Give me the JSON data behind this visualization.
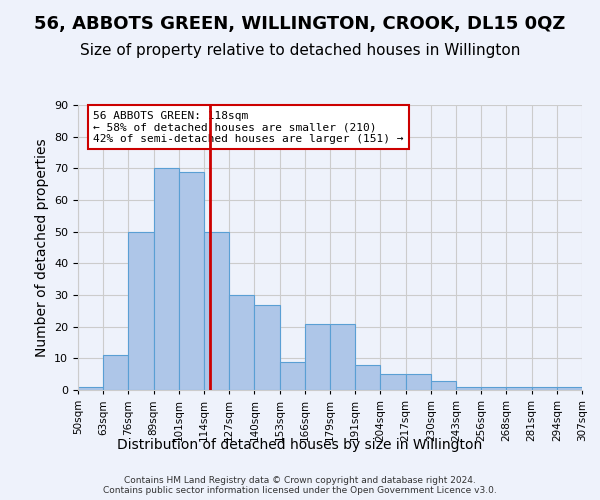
{
  "title": "56, ABBOTS GREEN, WILLINGTON, CROOK, DL15 0QZ",
  "subtitle": "Size of property relative to detached houses in Willington",
  "xlabel": "Distribution of detached houses by size in Willington",
  "ylabel": "Number of detached properties",
  "bin_labels": [
    "50sqm",
    "63sqm",
    "76sqm",
    "89sqm",
    "101sqm",
    "114sqm",
    "127sqm",
    "140sqm",
    "153sqm",
    "166sqm",
    "179sqm",
    "191sqm",
    "204sqm",
    "217sqm",
    "230sqm",
    "243sqm",
    "256sqm",
    "268sqm",
    "281sqm",
    "294sqm",
    "307sqm"
  ],
  "bar_heights": [
    1,
    11,
    50,
    70,
    69,
    50,
    30,
    27,
    9,
    21,
    21,
    8,
    5,
    5,
    3,
    1,
    1,
    1,
    1,
    1
  ],
  "bar_color": "#aec6e8",
  "bar_edgecolor": "#5a9fd4",
  "vline_x": 5.23,
  "vline_color": "#cc0000",
  "annotation_text": "56 ABBOTS GREEN: 118sqm\n← 58% of detached houses are smaller (210)\n42% of semi-detached houses are larger (151) →",
  "annotation_box_edgecolor": "#cc0000",
  "annotation_box_facecolor": "#ffffff",
  "ylim": [
    0,
    90
  ],
  "yticks": [
    0,
    10,
    20,
    30,
    40,
    50,
    60,
    70,
    80,
    90
  ],
  "title_fontsize": 13,
  "subtitle_fontsize": 11,
  "xlabel_fontsize": 10,
  "ylabel_fontsize": 10,
  "footer_text": "Contains HM Land Registry data © Crown copyright and database right 2024.\nContains public sector information licensed under the Open Government Licence v3.0.",
  "background_color": "#eef2fb",
  "plot_background_color": "#eef2fb",
  "grid_color": "#cccccc"
}
